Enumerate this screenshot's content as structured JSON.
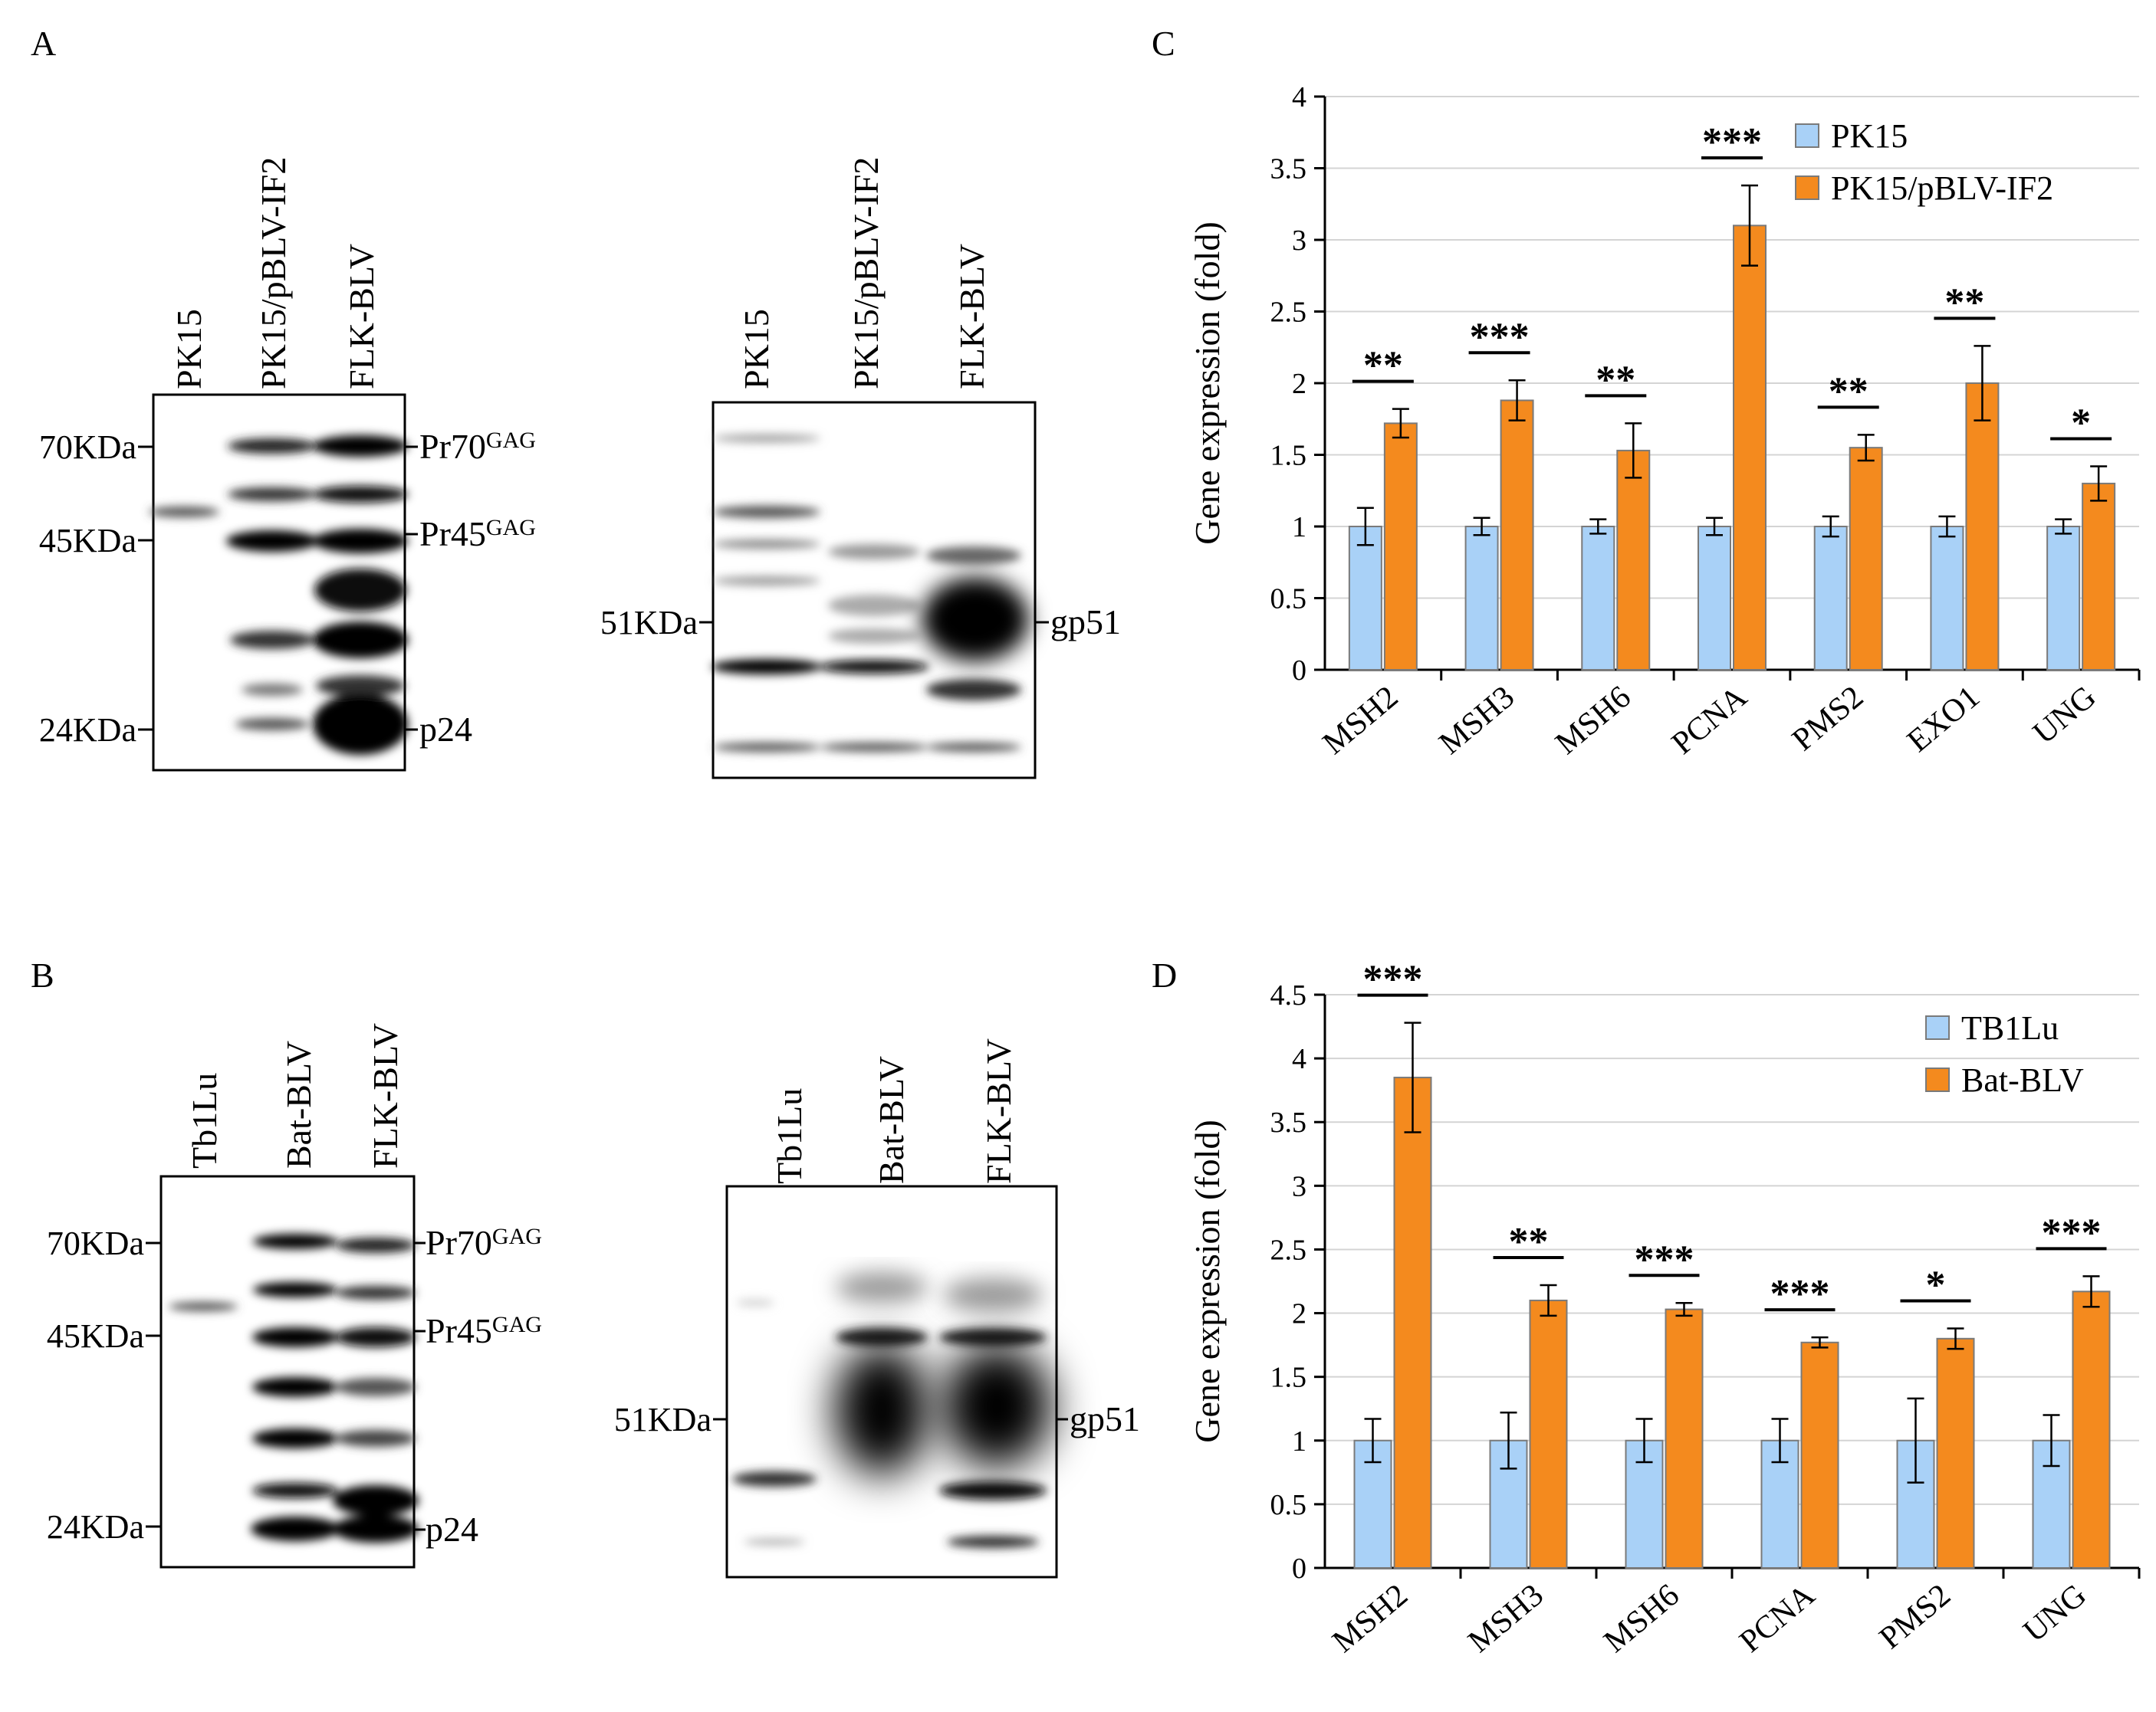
{
  "panels": {
    "A": {
      "letter": "A",
      "blot_left": {
        "lanes": [
          "PK15",
          "PK15/pBLV-IF2",
          "FLK-BLV"
        ],
        "markers": [
          "70KDa",
          "45KDa",
          "24KDa"
        ],
        "bands": [
          {
            "base": "Pr70",
            "sup": "GAG"
          },
          {
            "base": "Pr45",
            "sup": "GAG"
          },
          {
            "base": "p24",
            "sup": ""
          }
        ]
      },
      "blot_right": {
        "lanes": [
          "PK15",
          "PK15/pBLV-IF2",
          "FLK-BLV"
        ],
        "markers": [
          "51KDa"
        ],
        "bands": [
          {
            "base": "gp51",
            "sup": ""
          }
        ]
      }
    },
    "B": {
      "letter": "B",
      "blot_left": {
        "lanes": [
          "Tb1Lu",
          "Bat-BLV",
          "FLK-BLV"
        ],
        "markers": [
          "70KDa",
          "45KDa",
          "24KDa"
        ],
        "bands": [
          {
            "base": "Pr70",
            "sup": "GAG"
          },
          {
            "base": "Pr45",
            "sup": "GAG"
          },
          {
            "base": "p24",
            "sup": ""
          }
        ]
      },
      "blot_right": {
        "lanes": [
          "Tb1Lu",
          "Bat-BLV",
          "FLK-BLV"
        ],
        "markers": [
          "51KDa"
        ],
        "bands": [
          {
            "base": "gp51",
            "sup": ""
          }
        ]
      }
    },
    "C": {
      "letter": "C"
    },
    "D": {
      "letter": "D"
    }
  },
  "colors": {
    "control": "#a9d1f7",
    "treated": "#f48a1e",
    "grid": "#d4d4d4"
  },
  "chart_data": [
    {
      "id": "C",
      "type": "bar",
      "title": "",
      "xlabel": "",
      "ylabel": "Gene expression (fold)",
      "ylim": [
        0,
        4
      ],
      "yticks": [
        "0",
        "0.5",
        "1",
        "1.5",
        "2",
        "2.5",
        "3",
        "3.5",
        "4"
      ],
      "categories": [
        "MSH2",
        "MSH3",
        "MSH6",
        "PCNA",
        "PMS2",
        "EXO1",
        "UNG"
      ],
      "series": [
        {
          "name": "PK15",
          "values": [
            1.0,
            1.0,
            1.0,
            1.0,
            1.0,
            1.0,
            1.0
          ],
          "errors": [
            0.13,
            0.06,
            0.05,
            0.06,
            0.07,
            0.07,
            0.05
          ]
        },
        {
          "name": "PK15/pBLV-IF2",
          "values": [
            1.72,
            1.88,
            1.53,
            3.1,
            1.55,
            2.0,
            1.3
          ],
          "errors": [
            0.1,
            0.14,
            0.19,
            0.28,
            0.09,
            0.26,
            0.12
          ]
        }
      ],
      "significance": [
        "**",
        "***",
        "**",
        "***",
        "**",
        "**",
        "*"
      ],
      "legend": "top-right"
    },
    {
      "id": "D",
      "type": "bar",
      "title": "",
      "xlabel": "",
      "ylabel": "Gene expression (fold)",
      "ylim": [
        0,
        4.5
      ],
      "yticks": [
        "0",
        "0.5",
        "1",
        "1.5",
        "2",
        "2.5",
        "3",
        "3.5",
        "4",
        "4.5"
      ],
      "categories": [
        "MSH2",
        "MSH3",
        "MSH6",
        "PCNA",
        "PMS2",
        "UNG"
      ],
      "series": [
        {
          "name": "TB1Lu",
          "values": [
            1.0,
            1.0,
            1.0,
            1.0,
            1.0,
            1.0
          ],
          "errors": [
            0.17,
            0.22,
            0.17,
            0.17,
            0.33,
            0.2
          ]
        },
        {
          "name": "Bat-BLV",
          "values": [
            3.85,
            2.1,
            2.03,
            1.77,
            1.8,
            2.17
          ],
          "errors": [
            0.43,
            0.12,
            0.05,
            0.04,
            0.08,
            0.12
          ]
        }
      ],
      "significance": [
        "***",
        "**",
        "***",
        "***",
        "*",
        "***"
      ],
      "legend": "top-right"
    }
  ]
}
